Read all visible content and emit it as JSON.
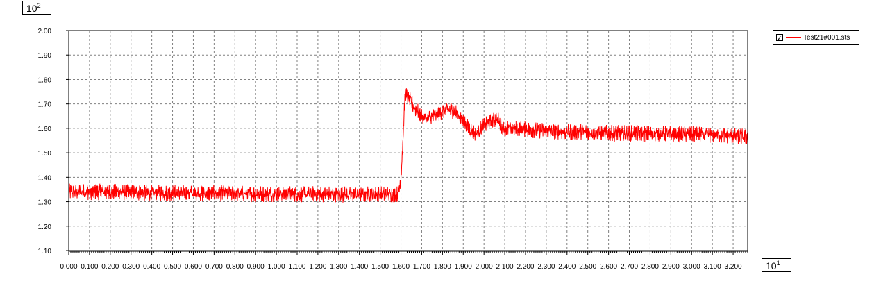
{
  "scales": {
    "y_base": "10",
    "y_exp": "2",
    "x_base": "10",
    "x_exp": "1"
  },
  "legend": {
    "checkbox": "✓",
    "label": "Test21#001.sts",
    "color": "#ff0000"
  },
  "chart_data": {
    "type": "line",
    "ylim": [
      1.1,
      2.0
    ],
    "xlim": [
      0,
      3.27
    ],
    "grid": true,
    "legend_placement": "top-right",
    "y_ticks": [
      "1.10",
      "1.20",
      "1.30",
      "1.40",
      "1.50",
      "1.60",
      "1.70",
      "1.80",
      "1.90",
      "2.00"
    ],
    "x_ticks": [
      "0.000",
      "0.100",
      "0.200",
      "0.300",
      "0.400",
      "0.500",
      "0.600",
      "0.700",
      "0.800",
      "0.900",
      "1.000",
      "1.100",
      "1.200",
      "1.300",
      "1.400",
      "1.500",
      "1.600",
      "1.700",
      "1.800",
      "1.900",
      "2.000",
      "2.100",
      "2.200",
      "2.300",
      "2.400",
      "2.500",
      "2.600",
      "2.700",
      "2.800",
      "2.900",
      "3.000",
      "3.100",
      "3.200"
    ],
    "series": [
      {
        "name": "Test21#001.sts",
        "color": "#ff0000",
        "x": [
          0.0,
          0.1,
          0.2,
          0.3,
          0.4,
          0.5,
          0.6,
          0.7,
          0.8,
          0.9,
          1.0,
          1.1,
          1.2,
          1.3,
          1.4,
          1.5,
          1.58,
          1.59,
          1.6,
          1.61,
          1.62,
          1.64,
          1.66,
          1.68,
          1.7,
          1.72,
          1.75,
          1.78,
          1.8,
          1.83,
          1.86,
          1.88,
          1.9,
          1.92,
          1.94,
          1.96,
          1.97,
          1.98,
          2.0,
          2.02,
          2.04,
          2.06,
          2.07,
          2.08,
          2.09,
          2.1,
          2.2,
          2.3,
          2.4,
          2.5,
          2.6,
          2.7,
          2.8,
          2.9,
          3.0,
          3.1,
          3.2,
          3.27
        ],
        "y": [
          1.34,
          1.34,
          1.34,
          1.337,
          1.336,
          1.335,
          1.335,
          1.334,
          1.333,
          1.332,
          1.332,
          1.331,
          1.331,
          1.33,
          1.33,
          1.33,
          1.33,
          1.34,
          1.4,
          1.56,
          1.74,
          1.72,
          1.69,
          1.67,
          1.65,
          1.64,
          1.645,
          1.66,
          1.67,
          1.675,
          1.67,
          1.65,
          1.63,
          1.61,
          1.59,
          1.58,
          1.58,
          1.595,
          1.61,
          1.62,
          1.63,
          1.64,
          1.63,
          1.61,
          1.6,
          1.6,
          1.595,
          1.59,
          1.585,
          1.585,
          1.58,
          1.58,
          1.578,
          1.576,
          1.575,
          1.573,
          1.57,
          1.565
        ],
        "noise_amplitude": 0.025
      }
    ]
  }
}
